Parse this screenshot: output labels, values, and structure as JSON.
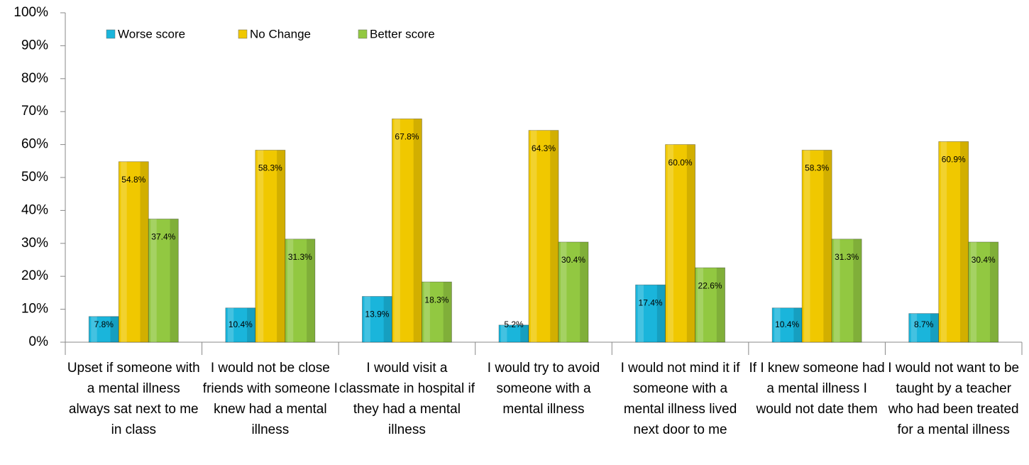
{
  "chart_data": {
    "type": "bar",
    "categories": [
      "Upset if someone with a mental illness always sat next to me in class",
      "I would not be close friends with someone I knew had a mental illness",
      "I would visit a classmate in hospital if they had a mental illness",
      "I would try to avoid someone with a mental illness",
      "I would not mind it if someone with a mental illness lived next door to me",
      "If I knew someone had a mental illness I would not date them",
      "I would not want to be taught by a teacher who had been treated for a mental illness"
    ],
    "series": [
      {
        "name": "Worse score",
        "color": "#1ab5db",
        "values": [
          7.8,
          10.4,
          13.9,
          5.2,
          17.4,
          10.4,
          8.7
        ],
        "value_labels": [
          "7.8%",
          "10.4%",
          "13.9%",
          "5.2%",
          "17.4%",
          "10.4%",
          "8.7%"
        ]
      },
      {
        "name": "No Change",
        "color": "#f0c800",
        "values": [
          54.8,
          58.3,
          67.8,
          64.3,
          60.0,
          58.3,
          60.9
        ],
        "value_labels": [
          "54.8%",
          "58.3%",
          "67.8%",
          "64.3%",
          "60.0%",
          "58.3%",
          "60.9%"
        ]
      },
      {
        "name": "Better score",
        "color": "#92c841",
        "values": [
          37.4,
          31.3,
          18.3,
          30.4,
          22.6,
          31.3,
          30.4
        ],
        "value_labels": [
          "37.4%",
          "31.3%",
          "18.3%",
          "30.4%",
          "22.6%",
          "31.3%",
          "30.4%"
        ]
      }
    ],
    "ylim": [
      0,
      100
    ],
    "yticks": [
      {
        "value": 0,
        "label": "0%"
      },
      {
        "value": 10,
        "label": "10%"
      },
      {
        "value": 20,
        "label": "20%"
      },
      {
        "value": 30,
        "label": "30%"
      },
      {
        "value": 40,
        "label": "40%"
      },
      {
        "value": 50,
        "label": "50%"
      },
      {
        "value": 60,
        "label": "60%"
      },
      {
        "value": 70,
        "label": "70%"
      },
      {
        "value": 80,
        "label": "80%"
      },
      {
        "value": 90,
        "label": "90%"
      },
      {
        "value": 100,
        "label": "100%"
      }
    ],
    "legend": "top-left",
    "grid": false
  }
}
